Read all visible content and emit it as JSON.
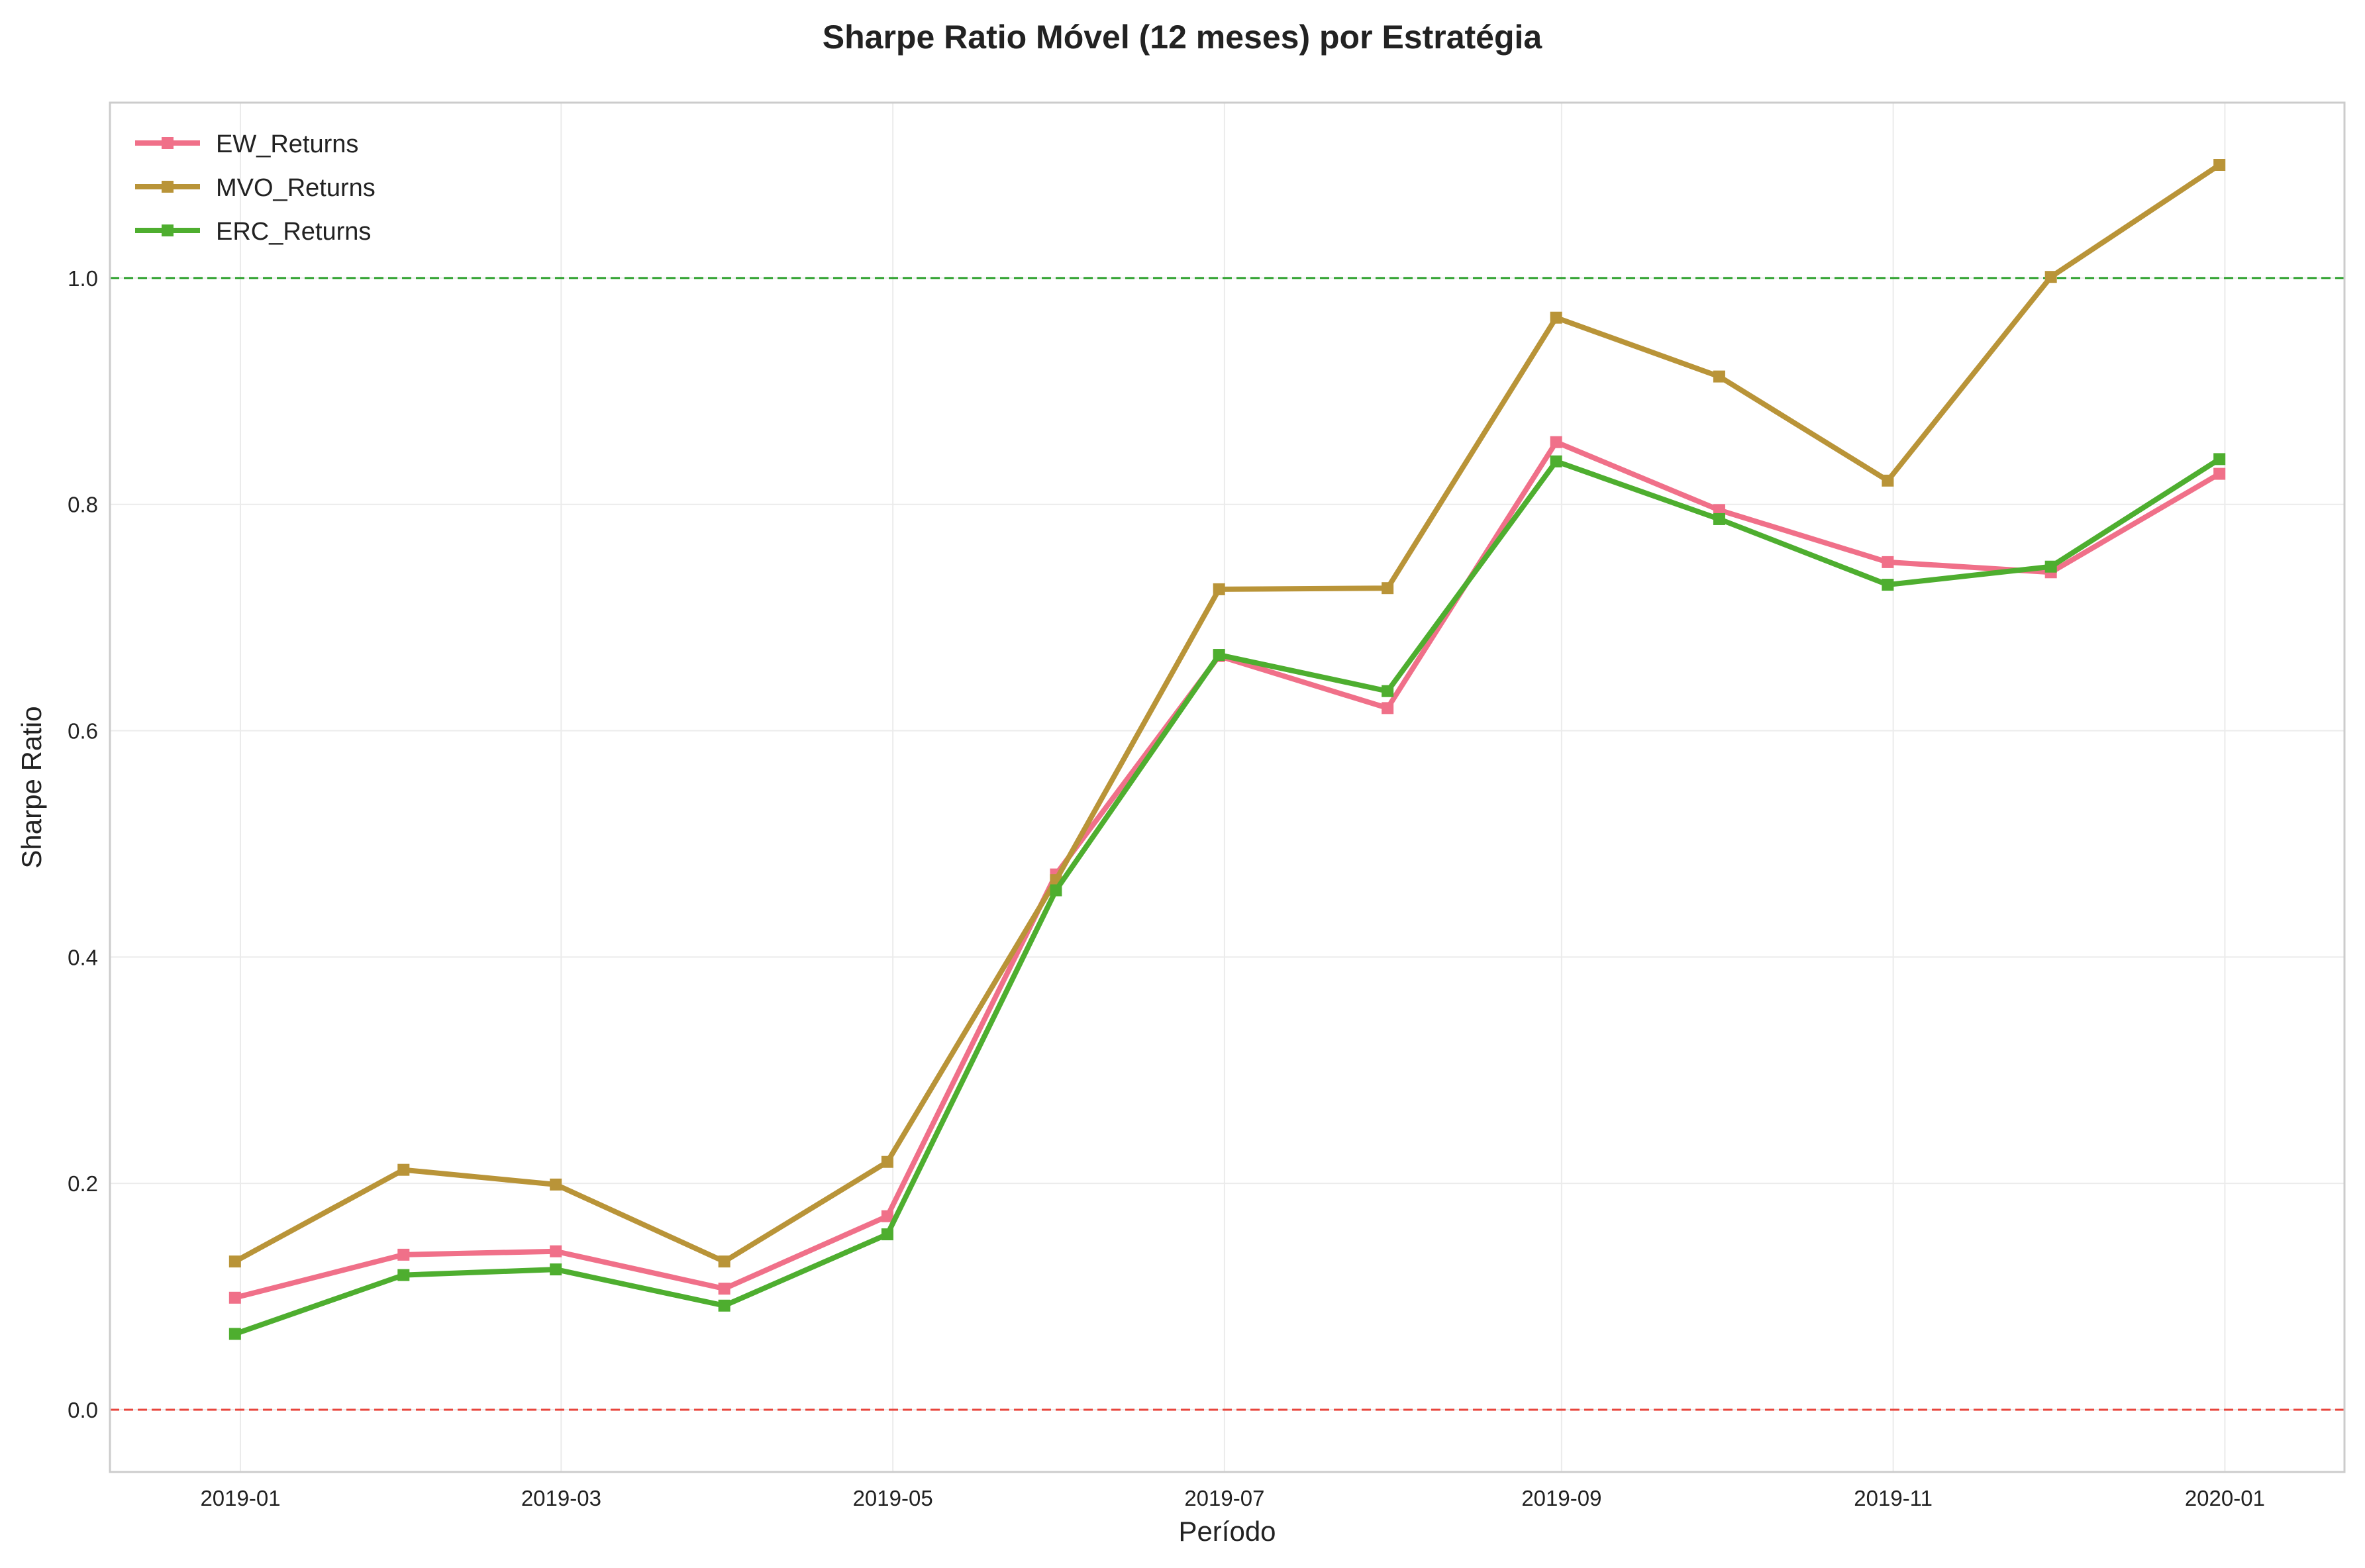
{
  "chart_data": {
    "type": "line",
    "title": "Sharpe Ratio Móvel (12 meses) por Estratégia",
    "xlabel": "Período",
    "ylabel": "Sharpe Ratio",
    "x": [
      "2018-12-31",
      "2019-01-31",
      "2019-02-28",
      "2019-03-31",
      "2019-04-30",
      "2019-05-31",
      "2019-06-30",
      "2019-07-31",
      "2019-08-31",
      "2019-09-30",
      "2019-10-31",
      "2019-11-30",
      "2019-12-31"
    ],
    "x_ticks": [
      "2019-01",
      "2019-03",
      "2019-05",
      "2019-07",
      "2019-09",
      "2019-11",
      "2020-01"
    ],
    "x_range": [
      "2018-12-08",
      "2020-01-23"
    ],
    "y_ticks": [
      0.0,
      0.2,
      0.4,
      0.6,
      0.8,
      1.0
    ],
    "ylim": [
      -0.055,
      1.155
    ],
    "grid": true,
    "legend_position": "top-left",
    "reference_lines": [
      {
        "y": 1.0,
        "color": "#2ca02c",
        "style": "dashed"
      },
      {
        "y": 0.0,
        "color": "#e8453c",
        "style": "dashed"
      }
    ],
    "series": [
      {
        "name": "EW_Returns",
        "color": "#f07089",
        "values": [
          0.099,
          0.137,
          0.14,
          0.107,
          0.171,
          0.473,
          0.666,
          0.62,
          0.855,
          0.795,
          0.749,
          0.74,
          0.827
        ]
      },
      {
        "name": "MVO_Returns",
        "color": "#b99438",
        "values": [
          0.131,
          0.212,
          0.199,
          0.131,
          0.219,
          0.468,
          0.725,
          0.726,
          0.965,
          0.913,
          0.821,
          1.001,
          1.1
        ]
      },
      {
        "name": "ERC_Returns",
        "color": "#4eae2f",
        "values": [
          0.067,
          0.119,
          0.124,
          0.092,
          0.155,
          0.459,
          0.667,
          0.635,
          0.838,
          0.787,
          0.729,
          0.745,
          0.84
        ]
      }
    ]
  }
}
